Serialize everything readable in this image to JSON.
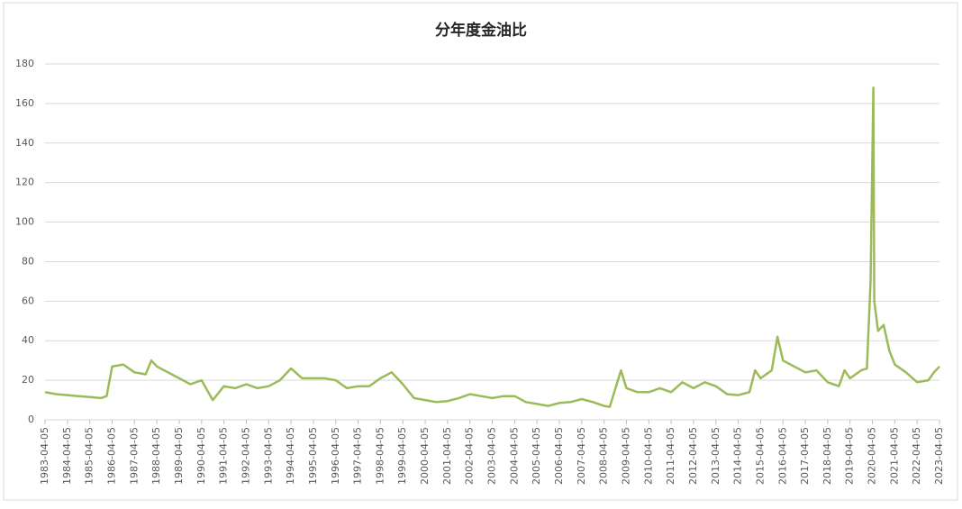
{
  "chart_data": {
    "type": "line",
    "title": "分年度金油比",
    "color": "#9bbb59",
    "grid": true,
    "ylim": [
      0,
      180
    ],
    "yticks": [
      0,
      20,
      40,
      60,
      80,
      100,
      120,
      140,
      160,
      180
    ],
    "xlim": [
      "1983-04-05",
      "2023-04-05"
    ],
    "xticks": [
      "1983-04-05",
      "1984-04-05",
      "1985-04-05",
      "1986-04-05",
      "1987-04-05",
      "1988-04-05",
      "1989-04-05",
      "1990-04-05",
      "1991-04-05",
      "1992-04-05",
      "1993-04-05",
      "1994-04-05",
      "1995-04-05",
      "1996-04-05",
      "1997-04-05",
      "1998-04-05",
      "1999-04-05",
      "2000-04-05",
      "2001-04-05",
      "2002-04-05",
      "2003-04-05",
      "2004-04-05",
      "2005-04-05",
      "2006-04-05",
      "2007-04-05",
      "2008-04-05",
      "2009-04-05",
      "2010-04-05",
      "2011-04-05",
      "2012-04-05",
      "2013-04-05",
      "2014-04-05",
      "2015-04-05",
      "2016-04-05",
      "2017-04-05",
      "2018-04-05",
      "2019-04-05",
      "2020-04-05",
      "2021-04-05",
      "2022-04-05",
      "2023-04-05"
    ],
    "x": [
      "1983-04-05",
      "1983-10-05",
      "1984-04-05",
      "1984-10-05",
      "1985-04-05",
      "1985-10-05",
      "1986-01-05",
      "1986-04-05",
      "1986-10-05",
      "1987-04-05",
      "1987-10-05",
      "1988-01-05",
      "1988-04-05",
      "1989-10-05",
      "1990-04-05",
      "1990-10-05",
      "1991-04-05",
      "1991-10-05",
      "1992-04-05",
      "1992-10-05",
      "1993-04-05",
      "1993-10-05",
      "1994-04-05",
      "1994-10-05",
      "1995-04-05",
      "1995-10-05",
      "1996-04-05",
      "1996-10-05",
      "1997-04-05",
      "1997-10-05",
      "1998-04-05",
      "1998-10-05",
      "1999-04-05",
      "1999-10-05",
      "2000-04-05",
      "2000-10-05",
      "2001-04-05",
      "2001-10-05",
      "2002-04-05",
      "2002-10-05",
      "2003-04-05",
      "2003-10-05",
      "2004-04-05",
      "2004-10-05",
      "2005-04-05",
      "2005-10-05",
      "2006-04-05",
      "2006-10-05",
      "2007-04-05",
      "2007-10-05",
      "2008-04-05",
      "2008-07-05",
      "2009-01-05",
      "2009-04-05",
      "2009-10-05",
      "2010-04-05",
      "2010-10-05",
      "2011-04-05",
      "2011-10-05",
      "2012-04-05",
      "2012-10-05",
      "2013-04-05",
      "2013-10-05",
      "2014-04-05",
      "2014-10-05",
      "2015-01-05",
      "2015-04-05",
      "2015-10-05",
      "2016-01-05",
      "2016-04-05",
      "2016-10-05",
      "2017-04-05",
      "2017-10-05",
      "2018-04-05",
      "2018-10-05",
      "2019-01-05",
      "2019-04-05",
      "2019-10-05",
      "2020-01-05",
      "2020-03-05",
      "2020-04-20",
      "2020-05-05",
      "2020-07-05",
      "2020-10-05",
      "2021-01-05",
      "2021-04-05",
      "2021-10-05",
      "2022-04-05",
      "2022-10-05",
      "2023-01-05",
      "2023-04-05"
    ],
    "values": [
      14,
      13,
      12.5,
      12,
      11.5,
      11,
      12,
      27,
      28,
      24,
      23,
      30,
      27,
      18,
      20,
      10,
      17,
      16,
      18,
      16,
      17,
      20,
      26,
      21,
      21,
      21,
      20,
      16,
      17,
      17,
      21,
      24,
      18,
      11,
      10,
      9,
      9.5,
      11,
      13,
      12,
      11,
      12,
      12,
      9,
      8,
      7,
      8.5,
      9,
      10.5,
      9,
      7,
      6.5,
      25,
      16,
      14,
      14,
      16,
      14,
      19,
      16,
      19,
      17,
      13,
      12.5,
      14,
      25,
      21,
      25,
      42,
      30,
      27,
      24,
      25,
      19,
      17,
      25,
      21,
      25,
      26,
      70,
      168,
      60,
      45,
      48,
      35,
      28,
      24,
      19,
      20,
      24,
      27
    ]
  }
}
